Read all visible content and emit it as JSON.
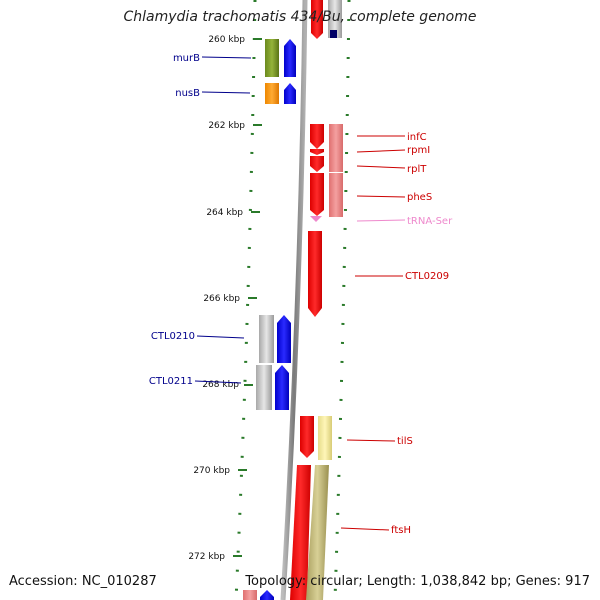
{
  "title": "Chlamydia trachomatis 434/Bu, complete genome",
  "footer": {
    "accession": "Accession: NC_010287",
    "summary": "Topology: circular; Length: 1,038,842 bp; Genes: 917"
  },
  "colors": {
    "backbone": "#8a8a8a",
    "ticks": "#2a7a2a",
    "forward_gene": "#0000ee",
    "reverse_gene": "#ee0000",
    "trna": "#ee88cc"
  },
  "scale": [
    {
      "label": "260 kbp"
    },
    {
      "label": "262 kbp"
    },
    {
      "label": "264 kbp"
    },
    {
      "label": "266 kbp"
    },
    {
      "label": "268 kbp"
    },
    {
      "label": "270 kbp"
    },
    {
      "label": "272 kbp"
    }
  ],
  "genes_left": [
    {
      "label": "murB",
      "color": "#00008b"
    },
    {
      "label": "nusB",
      "color": "#00008b"
    },
    {
      "label": "CTL0210",
      "color": "#00008b"
    },
    {
      "label": "CTL0211",
      "color": "#00008b"
    }
  ],
  "genes_right": [
    {
      "label": "infC",
      "color": "#cc0000"
    },
    {
      "label": "rpmI",
      "color": "#cc0000"
    },
    {
      "label": "rplT",
      "color": "#cc0000"
    },
    {
      "label": "pheS",
      "color": "#cc0000"
    },
    {
      "label": "tRNA-Ser",
      "color": "#ee88cc"
    },
    {
      "label": "CTL0209",
      "color": "#cc0000"
    },
    {
      "label": "tilS",
      "color": "#cc0000"
    },
    {
      "label": "ftsH",
      "color": "#cc0000"
    }
  ]
}
